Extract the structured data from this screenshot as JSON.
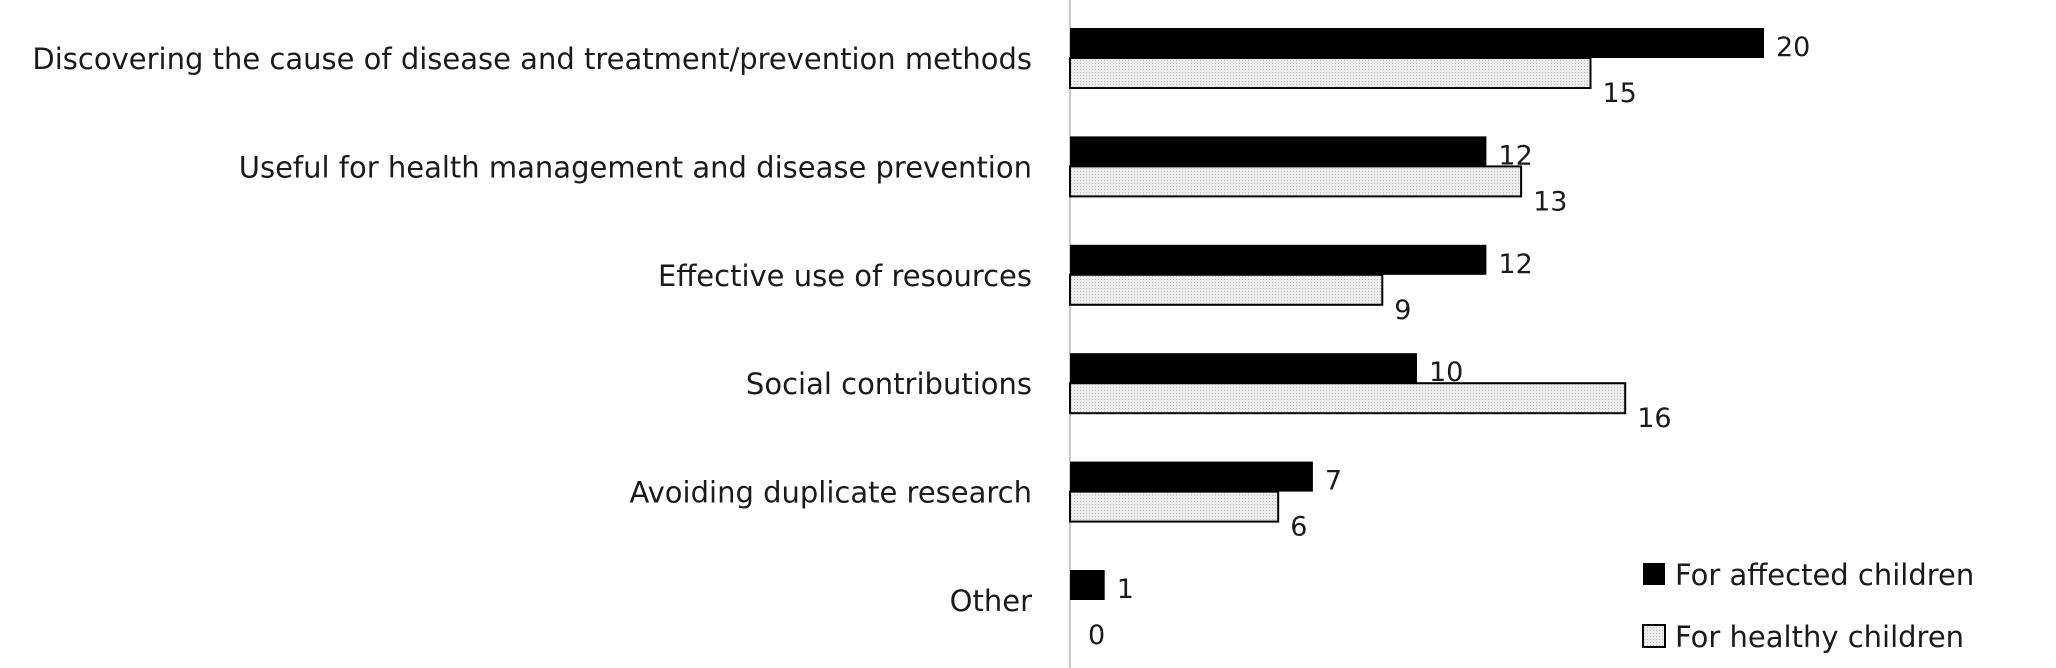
{
  "chart_data": {
    "type": "bar",
    "orientation": "horizontal",
    "title": "",
    "xlabel": "",
    "ylabel": "",
    "categories": [
      "Discovering the cause of disease and treatment/prevention methods",
      "Useful for health management and disease prevention",
      "Effective use of resources",
      "Social contributions",
      "Avoiding duplicate research",
      "Other"
    ],
    "series": [
      {
        "name": "For affected children",
        "color": "#000000",
        "values": [
          20,
          12,
          12,
          10,
          7,
          1
        ]
      },
      {
        "name": "For healthy children",
        "color": "#e3e3e3",
        "values": [
          15,
          13,
          9,
          16,
          6,
          0
        ]
      }
    ],
    "xlim": [
      0,
      20
    ],
    "grid": false,
    "legend_position": "bottom-right"
  }
}
